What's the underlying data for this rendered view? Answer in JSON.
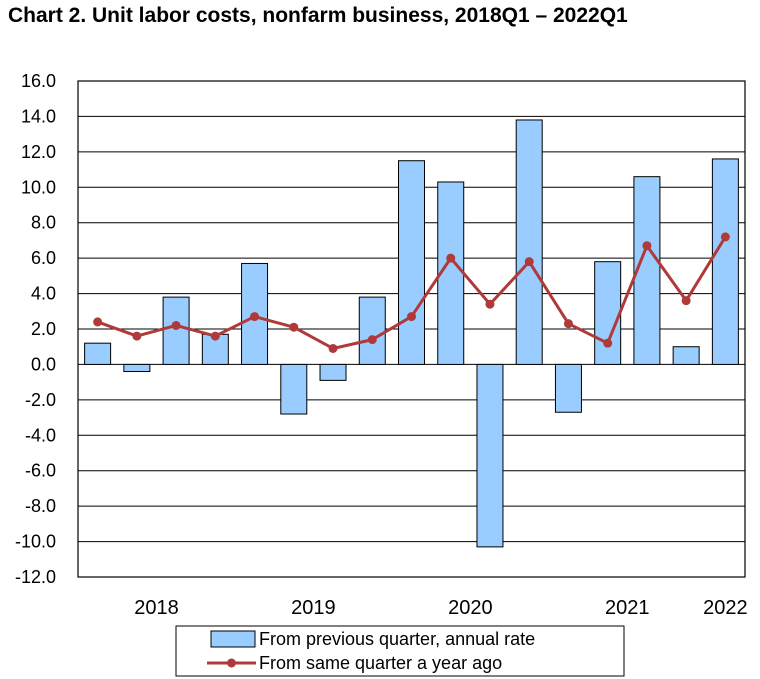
{
  "colors": {
    "bar_fill": "#99ccff",
    "bar_stroke": "#000000",
    "line": "#b03a3a",
    "marker": "#b03a3a",
    "grid": "#000000"
  },
  "chart_data": {
    "type": "bar",
    "title": "Chart  2. Unit labor costs, nonfarm business, 2018Q1 – 2022Q1",
    "xlabel": "",
    "ylabel": "",
    "ylim": [
      -12,
      16
    ],
    "ytick_step": 2,
    "ytick_labels": [
      "16.0",
      "14.0",
      "12.0",
      "10.0",
      "8.0",
      "6.0",
      "4.0",
      "2.0",
      "0.0",
      "-2.0",
      "-4.0",
      "-6.0",
      "-8.0",
      "-10.0",
      "-12.0"
    ],
    "grid": true,
    "legend_position": "bottom",
    "categories": [
      "2018Q1",
      "2018Q2",
      "2018Q3",
      "2018Q4",
      "2019Q1",
      "2019Q2",
      "2019Q3",
      "2019Q4",
      "2020Q1",
      "2020Q2",
      "2020Q3",
      "2020Q4",
      "2021Q1",
      "2021Q2",
      "2021Q3",
      "2021Q4",
      "2022Q1"
    ],
    "year_labels": [
      {
        "label": "2018",
        "start": 0,
        "count": 4
      },
      {
        "label": "2019",
        "start": 4,
        "count": 4
      },
      {
        "label": "2020",
        "start": 8,
        "count": 4
      },
      {
        "label": "2021",
        "start": 12,
        "count": 4
      },
      {
        "label": "2022",
        "start": 16,
        "count": 1
      }
    ],
    "series": [
      {
        "name": "From previous quarter, annual rate",
        "kind": "bar",
        "values": [
          1.2,
          -0.4,
          3.8,
          1.7,
          5.7,
          -2.8,
          -0.9,
          3.8,
          11.5,
          10.3,
          -10.3,
          13.8,
          -2.7,
          5.8,
          10.6,
          1.0,
          11.6
        ]
      },
      {
        "name": "From same quarter a year ago",
        "kind": "line",
        "values": [
          2.4,
          1.6,
          2.2,
          1.6,
          2.7,
          2.1,
          0.9,
          1.4,
          2.7,
          6.0,
          3.4,
          5.8,
          2.3,
          1.2,
          6.7,
          3.6,
          7.2
        ]
      }
    ]
  }
}
